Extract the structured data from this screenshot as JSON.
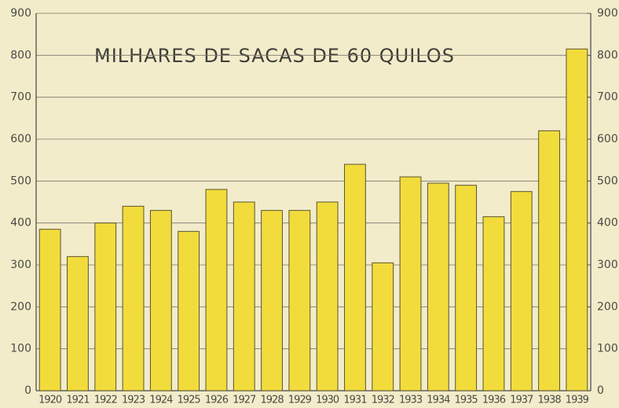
{
  "chart_data": {
    "type": "bar",
    "title": "MILHARES DE SACAS DE 60 QUILOS",
    "categories": [
      "1920",
      "1921",
      "1922",
      "1923",
      "1924",
      "1925",
      "1926",
      "1927",
      "1928",
      "1929",
      "1930",
      "1931",
      "1932",
      "1933",
      "1934",
      "1935",
      "1936",
      "1937",
      "1938",
      "1939"
    ],
    "values": [
      385,
      320,
      400,
      440,
      430,
      380,
      480,
      450,
      430,
      430,
      450,
      540,
      305,
      510,
      495,
      490,
      415,
      475,
      620,
      815
    ],
    "color": "#f2dc3c",
    "ylim": [
      0,
      900
    ],
    "yticks": [
      0,
      100,
      200,
      300,
      400,
      500,
      600,
      700,
      800,
      900
    ],
    "y2lim": [
      0,
      900
    ],
    "y2ticks": [
      0,
      100,
      200,
      300,
      400,
      500,
      600,
      700,
      800,
      900
    ],
    "grid": true
  }
}
